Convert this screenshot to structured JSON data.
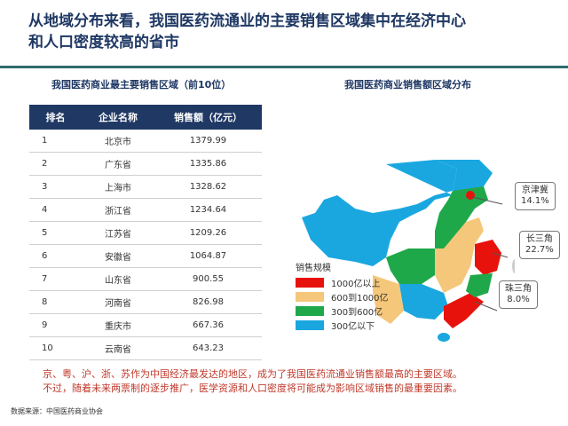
{
  "title": [
    "从地域分布来看，我国医药流通业的主要销售区域集中在经济中心",
    "和人口密度较高的省市"
  ],
  "table_title": "我国医药商业最主要销售区域（前10位）",
  "map_title": "我国医药商业销售额区域分布",
  "table": {
    "headers": [
      "排名",
      "企业名称",
      "销售额（亿元）"
    ],
    "rows": [
      [
        "1",
        "北京市",
        "1379.99"
      ],
      [
        "2",
        "广东省",
        "1335.86"
      ],
      [
        "3",
        "上海市",
        "1328.62"
      ],
      [
        "4",
        "浙江省",
        "1234.64"
      ],
      [
        "5",
        "江苏省",
        "1209.26"
      ],
      [
        "6",
        "安徽省",
        "1064.87"
      ],
      [
        "7",
        "山东省",
        "900.55"
      ],
      [
        "8",
        "河南省",
        "826.98"
      ],
      [
        "9",
        "重庆市",
        "667.36"
      ],
      [
        "10",
        "云南省",
        "643.23"
      ]
    ]
  },
  "legend": {
    "title": "销售规模",
    "items": [
      {
        "label": "1000亿以上",
        "color": "#e8120c"
      },
      {
        "label": "600到1000亿",
        "color": "#f5c77a"
      },
      {
        "label": "300到600亿",
        "color": "#1fa84a"
      },
      {
        "label": "300亿以下",
        "color": "#1aa7e0"
      }
    ]
  },
  "callouts": [
    {
      "name": "京津冀",
      "pct": "14.1%"
    },
    {
      "name": "长三角",
      "pct": "22.7%"
    },
    {
      "name": "珠三角",
      "pct": "8.0%"
    }
  ],
  "note": [
    "京、粤、沪、浙、苏作为中国经济最发达的地区，成为了我国医药流通业销售额最高的主要区域。",
    "不过，随着未来两票制的逐步推广，医学资源和人口密度将可能成为影响区域销售的最重要因素。"
  ],
  "source": "数据来源：中国医药商业协会"
}
